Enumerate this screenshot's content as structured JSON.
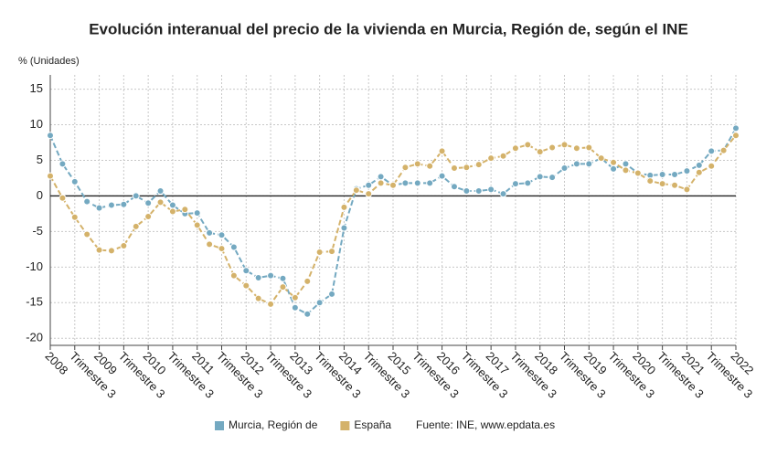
{
  "chart_data": {
    "type": "line",
    "title": "Evolución interanual del precio de la vivienda en Murcia, Región de, según el INE",
    "y_label": "% (Unidades)",
    "source": "Fuente: INE, www.epdata.es",
    "categories": [
      "2008",
      null,
      "Trimestre 3",
      null,
      "2009",
      null,
      "Trimestre 3",
      null,
      "2010",
      null,
      "Trimestre 3",
      null,
      "2011",
      null,
      "Trimestre 3",
      null,
      "2012",
      null,
      "Trimestre 3",
      null,
      "2013",
      null,
      "Trimestre 3",
      null,
      "2014",
      null,
      "Trimestre 3",
      null,
      "2015",
      null,
      "Trimestre 3",
      null,
      "2016",
      null,
      "Trimestre 3",
      null,
      "2017",
      null,
      "Trimestre 3",
      null,
      "2018",
      null,
      "Trimestre 3",
      null,
      "2019",
      null,
      "Trimestre 3",
      null,
      "2020",
      null,
      "Trimestre 3",
      null,
      "2021",
      null,
      "Trimestre 3",
      null,
      "2022"
    ],
    "series": [
      {
        "name": "Murcia, Región de",
        "color": "#74a9c1",
        "values": [
          8.5,
          4.5,
          2.0,
          -0.8,
          -1.7,
          -1.3,
          -1.2,
          0.0,
          -1.0,
          0.7,
          -1.3,
          -2.5,
          -2.4,
          -5.2,
          -5.5,
          -7.2,
          -10.5,
          -11.5,
          -11.2,
          -11.6,
          -15.7,
          -16.6,
          -15.0,
          -13.8,
          -4.5,
          1.0,
          1.5,
          2.7,
          1.5,
          1.8,
          1.8,
          1.8,
          2.8,
          1.3,
          0.7,
          0.7,
          0.9,
          0.3,
          1.7,
          1.8,
          2.7,
          2.6,
          3.9,
          4.5,
          4.5,
          5.3,
          3.8,
          4.5,
          3.2,
          2.9,
          3.0,
          3.0,
          3.5,
          4.3,
          6.3,
          6.4,
          9.5
        ]
      },
      {
        "name": "España",
        "color": "#d4b26a",
        "values": [
          2.8,
          -0.3,
          -3.0,
          -5.4,
          -7.6,
          -7.7,
          -7.0,
          -4.3,
          -2.9,
          -0.9,
          -2.2,
          -1.9,
          -4.1,
          -6.8,
          -7.4,
          -11.2,
          -12.6,
          -14.4,
          -15.2,
          -12.8,
          -14.3,
          -12.0,
          -7.9,
          -7.8,
          -1.6,
          0.8,
          0.3,
          1.8,
          1.5,
          4.0,
          4.5,
          4.2,
          6.3,
          3.9,
          4.0,
          4.4,
          5.3,
          5.6,
          6.7,
          7.2,
          6.2,
          6.8,
          7.2,
          6.7,
          6.8,
          5.3,
          4.7,
          3.6,
          3.2,
          2.1,
          1.7,
          1.5,
          0.9,
          3.3,
          4.2,
          6.4,
          8.5
        ]
      }
    ],
    "ylim": [
      -21,
      17
    ],
    "yticks": [
      -20,
      -15,
      -10,
      -5,
      0,
      5,
      10,
      15
    ],
    "grid": true
  }
}
